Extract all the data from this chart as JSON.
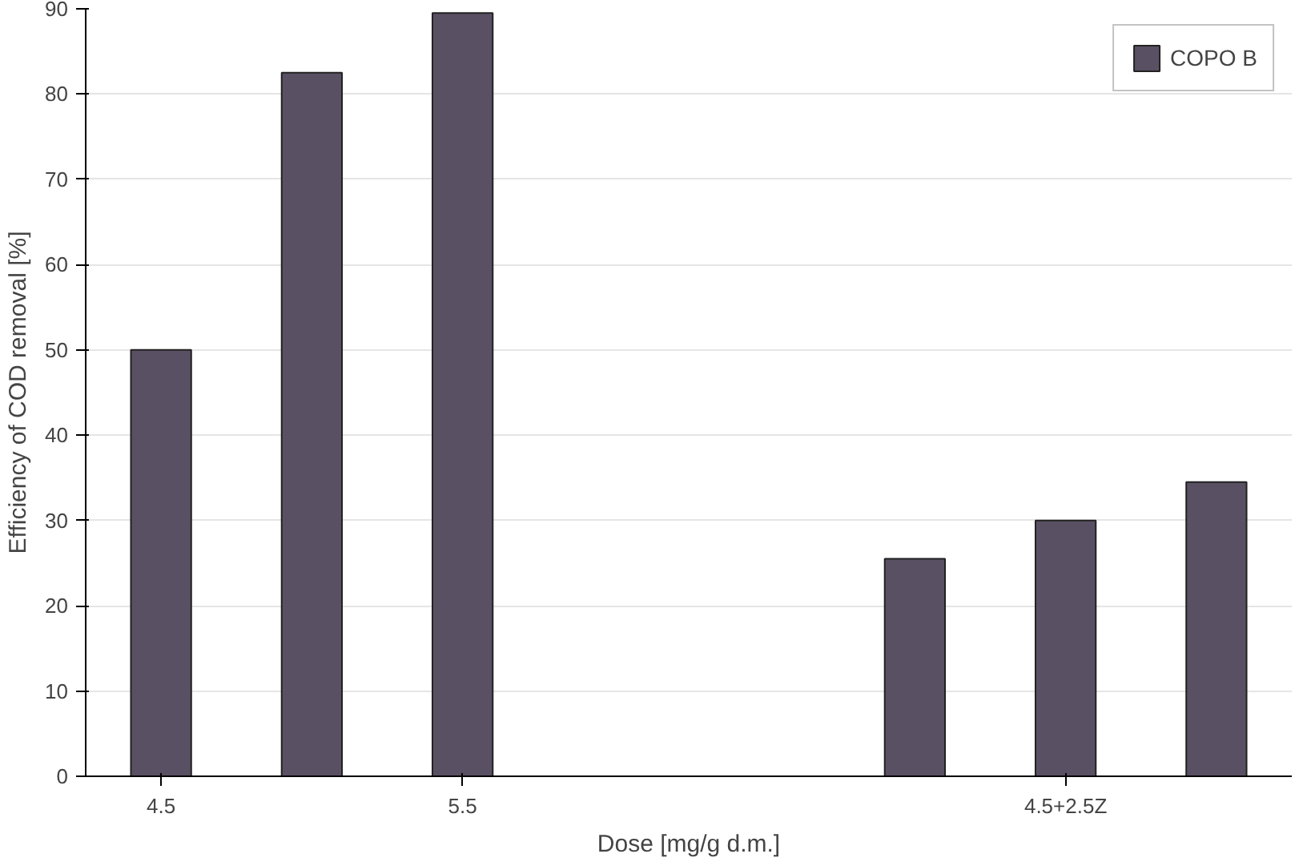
{
  "chart_data": {
    "type": "bar",
    "xlabel": "Dose [mg/g d.m.]",
    "ylabel": "Efficiency of COD removal [%]",
    "categories": [
      "4.5",
      null,
      "5.5",
      null,
      null,
      null,
      "4.5+2.5Z",
      null
    ],
    "series": [
      {
        "name": "COPO B",
        "color": "#5a5063",
        "values": [
          50,
          82.5,
          89.5,
          null,
          null,
          25.5,
          30,
          34.5
        ]
      }
    ],
    "ylim": [
      0,
      90
    ],
    "yticks": [
      0,
      10,
      20,
      30,
      40,
      50,
      60,
      70,
      80,
      90
    ],
    "grid": "y",
    "legend": "top right"
  }
}
